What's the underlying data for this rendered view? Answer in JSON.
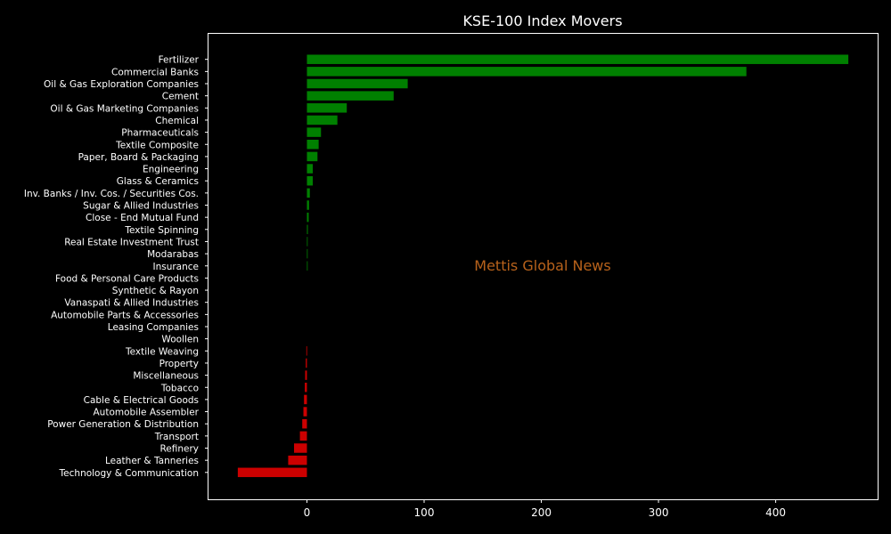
{
  "chart_data": {
    "type": "bar",
    "orientation": "horizontal",
    "title": "KSE-100 Index Movers",
    "xlabel": "",
    "ylabel": "",
    "xlim": [
      -84,
      487
    ],
    "xticks": [
      0,
      100,
      200,
      300,
      400
    ],
    "grid": false,
    "legend": "none",
    "categories": [
      "Fertilizer",
      "Commercial Banks",
      "Oil & Gas Exploration Companies",
      "Cement",
      "Oil & Gas Marketing Companies",
      "Chemical",
      "Pharmaceuticals",
      "Textile Composite",
      "Paper, Board & Packaging",
      "Engineering",
      "Glass & Ceramics",
      "Inv. Banks / Inv. Cos. / Securities Cos.",
      "Sugar & Allied Industries",
      "Close - End Mutual Fund",
      "Textile Spinning",
      "Real Estate Investment Trust",
      "Modarabas",
      "Insurance",
      "Food & Personal Care Products",
      "Synthetic & Rayon",
      "Vanaspati & Allied Industries",
      "Automobile Parts & Accessories",
      "Leasing Companies",
      "Woollen",
      "Textile Weaving",
      "Property",
      "Miscellaneous",
      "Tobacco",
      "Cable & Electrical Goods",
      "Automobile Assembler",
      "Power Generation & Distribution",
      "Transport",
      "Refinery",
      "Leather & Tanneries",
      "Technology & Communication"
    ],
    "values": [
      462,
      375,
      86,
      74,
      34,
      26,
      12,
      10,
      9,
      5,
      5,
      2.5,
      1.8,
      1.5,
      0.8,
      0.5,
      0.4,
      0.3,
      0,
      0,
      0,
      0,
      0,
      0,
      -0.5,
      -1,
      -1.5,
      -1.8,
      -2.5,
      -3,
      -4,
      -6,
      -11,
      -16,
      -59
    ],
    "colors": {
      "positive": "#008000",
      "negative": "#cc0000",
      "background": "#000000",
      "axes": "#ffffff",
      "text": "#ffffff",
      "watermark": "#b8621b"
    },
    "watermark": "Mettis Global News"
  }
}
